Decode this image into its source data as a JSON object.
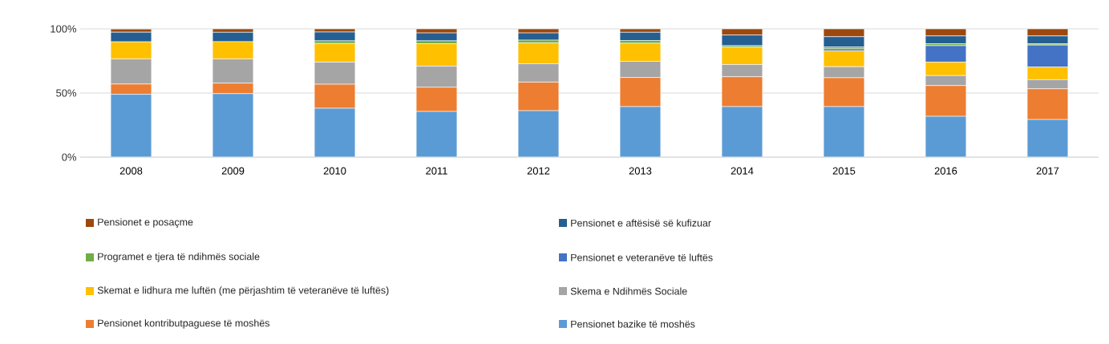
{
  "chart_data": {
    "type": "bar",
    "stacked": true,
    "categories": [
      "2008",
      "2009",
      "2010",
      "2011",
      "2012",
      "2013",
      "2014",
      "2015",
      "2016",
      "2017"
    ],
    "series": [
      {
        "name": "Pensionet bazike të moshës",
        "color": "#5b9bd5",
        "values": [
          49,
          49.5,
          38.1,
          35.6,
          36.2,
          39.4,
          39.4,
          39.4,
          31.8,
          29.3
        ]
      },
      {
        "name": "Pensionet kontributpaguese të moshës",
        "color": "#ed7d31",
        "values": [
          8,
          8.2,
          18.7,
          18.9,
          22.3,
          22.7,
          23.3,
          22.5,
          24,
          24
        ]
      },
      {
        "name": "Skema e Ndihmës Sociale",
        "color": "#a5a5a5",
        "values": [
          19.6,
          18.9,
          17.3,
          16.4,
          14.3,
          12.6,
          9.5,
          8.6,
          7.8,
          7.1
        ]
      },
      {
        "name": "Skemat e lidhura me luftën (me përjashtim të veteranëve të luftës)",
        "color": "#ffc000",
        "values": [
          13.3,
          13.4,
          14.5,
          17.5,
          16.3,
          14.1,
          13.5,
          12.4,
          10.5,
          9.9
        ]
      },
      {
        "name": "Pensionet e veteranëve të luftës",
        "color": "#4472c4",
        "values": [
          0,
          0,
          0,
          0,
          0,
          0,
          0,
          1.5,
          12.8,
          17.1
        ]
      },
      {
        "name": "Programet e tjera të ndihmës sociale",
        "color": "#70ad47",
        "values": [
          0,
          0,
          2.1,
          2.3,
          2.1,
          2.1,
          1.2,
          1.5,
          1.5,
          1
        ]
      },
      {
        "name": "Pensionet e aftësisë së kufizuar",
        "color": "#255e91",
        "values": [
          7.5,
          7.3,
          6.8,
          6.1,
          5.6,
          6.4,
          8.3,
          8,
          6.1,
          6.1
        ]
      },
      {
        "name": "Pensionet e posaçme",
        "color": "#9e480e",
        "values": [
          2.5,
          2.7,
          2.5,
          3.2,
          3.2,
          2.7,
          4.8,
          6.1,
          5.5,
          5.5
        ]
      }
    ],
    "ylim": [
      0,
      100
    ],
    "yticks": [
      {
        "value": 0,
        "label": "0%"
      },
      {
        "value": 50,
        "label": "50%"
      },
      {
        "value": 100,
        "label": "100%"
      }
    ],
    "grid": "y",
    "legend": "bottom"
  }
}
